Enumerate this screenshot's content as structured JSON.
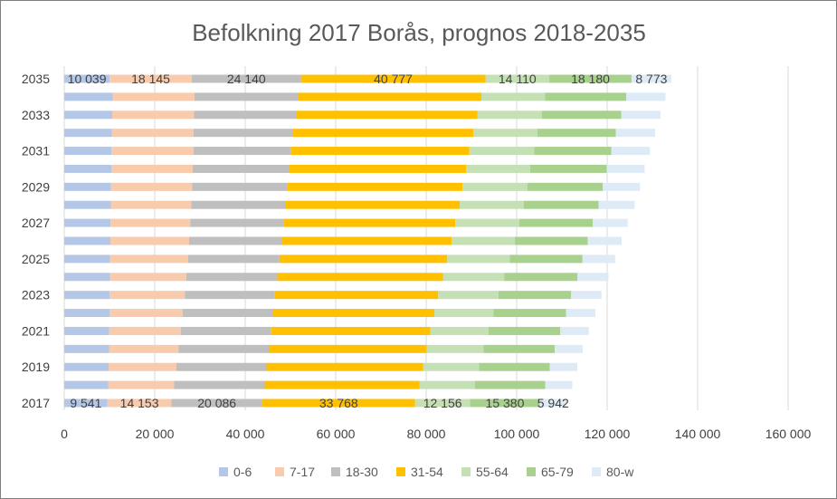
{
  "chart_data": {
    "type": "bar",
    "orientation": "horizontal",
    "stacked": true,
    "title": "Befolkning 2017 Borås, prognos 2018-2035",
    "xlabel": "",
    "ylabel": "",
    "xlim": [
      0,
      160000
    ],
    "x_ticks": [
      0,
      20000,
      40000,
      60000,
      80000,
      100000,
      120000,
      140000,
      160000
    ],
    "x_tick_labels": [
      "0",
      "20 000",
      "40 000",
      "60 000",
      "80 000",
      "100 000",
      "120 000",
      "140 000",
      "160 000"
    ],
    "grid": "vertical",
    "legend_position": "bottom",
    "categories": [
      "2017",
      "2018",
      "2019",
      "2020",
      "2021",
      "2022",
      "2023",
      "2024",
      "2025",
      "2026",
      "2027",
      "2028",
      "2029",
      "2030",
      "2031",
      "2032",
      "2033",
      "2034",
      "2035"
    ],
    "category_labels": [
      "2017",
      "",
      "2019",
      "",
      "2021",
      "",
      "2023",
      "",
      "2025",
      "",
      "2027",
      "",
      "2029",
      "",
      "2031",
      "",
      "2033",
      "",
      "2035"
    ],
    "series": [
      {
        "name": "0-6",
        "color": "#b4c7e7",
        "values": [
          9541,
          9700,
          9800,
          9900,
          9950,
          10000,
          10050,
          10100,
          10150,
          10200,
          10250,
          10300,
          10350,
          10400,
          10450,
          10500,
          10600,
          10700,
          10039
        ]
      },
      {
        "name": "7-17",
        "color": "#f8cbad",
        "values": [
          14153,
          14600,
          15000,
          15400,
          15800,
          16200,
          16600,
          16900,
          17200,
          17400,
          17600,
          17800,
          17900,
          18000,
          18100,
          18100,
          18100,
          18100,
          18145
        ]
      },
      {
        "name": "18-30",
        "color": "#bfbfbf",
        "values": [
          20086,
          20000,
          19900,
          19900,
          20000,
          20000,
          19900,
          20100,
          20200,
          20400,
          20600,
          20800,
          21000,
          21300,
          21600,
          22000,
          22500,
          23000,
          24140
        ]
      },
      {
        "name": "31-54",
        "color": "#ffc000",
        "values": [
          33768,
          34200,
          34600,
          34900,
          35200,
          35600,
          36100,
          36600,
          37100,
          37600,
          38000,
          38500,
          38800,
          39100,
          39400,
          39800,
          40100,
          40400,
          40777
        ]
      },
      {
        "name": "55-64",
        "color": "#c5e0b4",
        "values": [
          12156,
          12300,
          12400,
          12600,
          12800,
          13100,
          13300,
          13600,
          13800,
          14000,
          14100,
          14200,
          14300,
          14200,
          14300,
          14200,
          14300,
          14100,
          14110
        ]
      },
      {
        "name": "65-79",
        "color": "#a9d18e",
        "values": [
          15380,
          15500,
          15600,
          15700,
          15900,
          16000,
          16100,
          16100,
          16100,
          16100,
          16300,
          16500,
          16700,
          16900,
          17100,
          17300,
          17500,
          17900,
          18180
        ]
      },
      {
        "name": "80-w",
        "color": "#deebf7",
        "values": [
          5942,
          6000,
          6100,
          6200,
          6300,
          6500,
          6700,
          6900,
          7200,
          7500,
          7700,
          8000,
          8200,
          8400,
          8500,
          8700,
          8700,
          8700,
          8773
        ]
      }
    ],
    "labeled_categories": [
      "2017",
      "2035"
    ],
    "data_labels": {
      "2017": [
        "9 541",
        "14 153",
        "20 086",
        "33 768",
        "12 156",
        "15 380",
        "5 942"
      ],
      "2035": [
        "10 039",
        "18 145",
        "24 140",
        "40 777",
        "14 110",
        "18 180",
        "8 773"
      ]
    }
  }
}
